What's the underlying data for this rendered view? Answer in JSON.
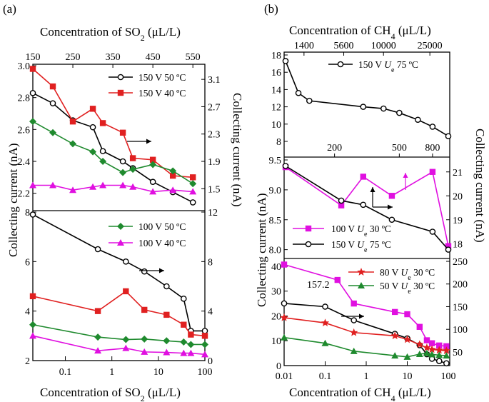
{
  "chart_data": [
    {
      "type": "line",
      "panel_label": "(a)",
      "title": "",
      "xlabel": "Concentration of SO2 (μL/L)",
      "xlabel_display": [
        "Concentration of SO",
        "2",
        " (μL/L)"
      ],
      "top_xlabel_display": [
        "Concentration of SO",
        "2",
        " (μL/L)"
      ],
      "top_ticks": [
        "150",
        "250",
        "350",
        "450",
        "550"
      ],
      "left_ylabel": "Collecting current (nA)",
      "right_ylabel": "Collecting current (nA)",
      "subplots": [
        {
          "name": "a-top",
          "x_scale": "linear",
          "xlim": [
            150,
            580
          ],
          "ylim_left": [
            2.1,
            3.0
          ],
          "ylim_right": [
            1.2,
            3.3
          ],
          "left_ticks": [
            "2.2",
            "2.4",
            "2.6",
            "2.8",
            "3.0"
          ],
          "right_ticks": [
            "1.5",
            "1.9",
            "2.3",
            "2.7",
            "3.1"
          ],
          "series": [
            {
              "name": "150 V 50 °C",
              "color": "#000000",
              "marker": "circle-open",
              "axis": "right",
              "x": [
                150,
                200,
                250,
                300,
                325,
                375,
                400,
                450,
                500,
                550
              ],
              "y": [
                2.9,
                2.75,
                2.5,
                2.4,
                2.05,
                1.9,
                1.8,
                1.6,
                1.45,
                1.3
              ]
            },
            {
              "name": "150 V 40 °C",
              "color": "#e02020",
              "marker": "square",
              "axis": "left",
              "x": [
                150,
                200,
                250,
                300,
                325,
                375,
                400,
                450,
                500,
                550
              ],
              "y": [
                2.98,
                2.87,
                2.65,
                2.73,
                2.64,
                2.58,
                2.42,
                2.41,
                2.31,
                2.3
              ]
            },
            {
              "name": "100 V 50 °C",
              "color": "#1f8a2e",
              "marker": "diamond",
              "axis": "left",
              "x": [
                150,
                200,
                250,
                300,
                325,
                375,
                400,
                450,
                500,
                550
              ],
              "y": [
                2.65,
                2.58,
                2.51,
                2.46,
                2.4,
                2.33,
                2.35,
                2.38,
                2.34,
                2.26
              ]
            },
            {
              "name": "100 V 40 °C",
              "color": "#e010e0",
              "marker": "triangle",
              "axis": "left",
              "x": [
                150,
                200,
                250,
                300,
                325,
                375,
                400,
                450,
                500,
                550
              ],
              "y": [
                2.25,
                2.25,
                2.22,
                2.24,
                2.25,
                2.25,
                2.24,
                2.21,
                2.22,
                2.21
              ]
            }
          ]
        },
        {
          "name": "a-bottom",
          "x_scale": "log",
          "xlim": [
            0.02,
            100
          ],
          "x_ticks": [
            "0.1",
            "1",
            "10",
            "100"
          ],
          "ylim_left": [
            2,
            8
          ],
          "ylim_right": [
            0,
            12
          ],
          "left_ticks": [
            "2",
            "4",
            "6",
            "8"
          ],
          "right_ticks": [
            "0",
            "4",
            "8",
            "12"
          ],
          "series": [
            {
              "name": "150 V 50 °C",
              "color": "#000000",
              "marker": "circle-open",
              "axis": "right",
              "x": [
                0.02,
                0.5,
                2,
                5,
                15,
                35,
                50,
                100
              ],
              "y": [
                11.8,
                9,
                8,
                7.2,
                6,
                5,
                2.4,
                2.4
              ]
            },
            {
              "name": "150 V 40 °C",
              "color": "#e02020",
              "marker": "square",
              "axis": "left",
              "x": [
                0.02,
                0.5,
                2,
                5,
                15,
                35,
                50,
                100
              ],
              "y": [
                4.6,
                4.0,
                4.8,
                4.05,
                3.85,
                3.45,
                3.05,
                3.0
              ]
            },
            {
              "name": "100 V 50 °C",
              "color": "#1f8a2e",
              "marker": "diamond",
              "axis": "left",
              "x": [
                0.02,
                0.5,
                2,
                5,
                15,
                35,
                50,
                100
              ],
              "y": [
                3.45,
                2.95,
                2.85,
                2.87,
                2.8,
                2.75,
                2.65,
                2.65
              ]
            },
            {
              "name": "100 V 40 °C",
              "color": "#e010e0",
              "marker": "triangle",
              "axis": "left",
              "x": [
                0.02,
                0.5,
                2,
                5,
                15,
                35,
                50,
                100
              ],
              "y": [
                3.0,
                2.4,
                2.5,
                2.35,
                2.33,
                2.3,
                2.3,
                2.25
              ]
            }
          ]
        }
      ],
      "legend_top": [
        "150 V 50 ºC",
        "150 V 40 ºC"
      ],
      "legend_bottom": [
        "100 V 50 ºC",
        "100 V 40 ºC"
      ]
    },
    {
      "type": "line",
      "panel_label": "(b)",
      "title": "",
      "xlabel": "Concentration of CH4 (μL/L)",
      "xlabel_display": [
        "Concentration of CH",
        "4",
        " (μL/L)"
      ],
      "top_xlabel_display": [
        "Concentration of CH",
        "4",
        " (μL/L)"
      ],
      "top_ticks": [
        "1400",
        "5600",
        "10000",
        "25000"
      ],
      "left_ylabel": "Collecting current (nA)",
      "right_ylabel": "Collecting current (nA)",
      "subplots": [
        {
          "name": "b-top",
          "x_scale": "log",
          "xlim": [
            100,
            1000
          ],
          "ylim_left": [
            8,
            18
          ],
          "left_ticks": [
            "8",
            "10",
            "12",
            "14",
            "16",
            "18"
          ],
          "inner_ticks": [
            "200",
            "500",
            "800"
          ],
          "series": [
            {
              "name": "150 V Ue 75 °C",
              "color": "#000000",
              "marker": "circle-open",
              "axis": "left",
              "x": [
                100,
                120,
                140,
                300,
                400,
                500,
                650,
                800,
                1000
              ],
              "y": [
                17.3,
                13.6,
                12.7,
                12.0,
                11.8,
                11.3,
                10.5,
                9.7,
                8.6
              ]
            }
          ]
        },
        {
          "name": "b-middle",
          "x_scale": "log",
          "xlim": [
            100,
            1000
          ],
          "ylim_left": [
            7.9,
            9.5
          ],
          "ylim_right": [
            17.5,
            21.5
          ],
          "left_ticks": [
            "8.0",
            "8.5",
            "9.0",
            "9.5"
          ],
          "right_ticks": [
            "18",
            "19",
            "20",
            "21"
          ],
          "series": [
            {
              "name": "100 V Ue 30 °C",
              "color": "#e010e0",
              "marker": "square",
              "axis": "right",
              "x": [
                100,
                220,
                300,
                450,
                800,
                1000
              ],
              "y": [
                21.2,
                19.6,
                20.8,
                20.0,
                21.0,
                17.9
              ]
            },
            {
              "name": "150 V Ue 75 °C",
              "color": "#000000",
              "marker": "circle-open",
              "axis": "left",
              "x": [
                100,
                220,
                300,
                450,
                800,
                1000
              ],
              "y": [
                9.4,
                8.82,
                8.75,
                8.5,
                8.3,
                8.0
              ]
            }
          ]
        },
        {
          "name": "b-bottom",
          "x_scale": "log",
          "xlim": [
            0.01,
            100
          ],
          "x_ticks": [
            "0.01",
            "0.1",
            "1",
            "10",
            "100"
          ],
          "ylim_left": [
            0,
            42
          ],
          "ylim_right": [
            20,
            250
          ],
          "left_ticks": [
            "0",
            "10",
            "20",
            "30",
            "40"
          ],
          "right_ticks": [
            "50",
            "100",
            "150",
            "200",
            "250"
          ],
          "annotation": "157.2",
          "series": [
            {
              "name": "100 V Ue 30 °C",
              "color": "#e010e0",
              "marker": "square",
              "axis": "left",
              "x": [
                0.01,
                0.2,
                0.5,
                5,
                10,
                20,
                30,
                40,
                60,
                90
              ],
              "y": [
                40.7,
                34.5,
                25,
                21.6,
                20.7,
                15.6,
                10.2,
                9,
                8.1,
                7.8
              ]
            },
            {
              "name": "150 V Ue 75 °C",
              "color": "#000000",
              "marker": "circle-open",
              "axis": "right",
              "x": [
                0.01,
                0.1,
                0.5,
                5,
                10,
                20,
                30,
                40,
                60,
                90
              ],
              "y": [
                157.2,
                150,
                120,
                90,
                80,
                65,
                45,
                35,
                30,
                25
              ]
            },
            {
              "name": "80 V Ue 30 °C",
              "color": "#e02020",
              "marker": "star",
              "axis": "left",
              "x": [
                0.01,
                0.1,
                0.5,
                5,
                10,
                20,
                30,
                40,
                60,
                90
              ],
              "y": [
                19.3,
                17.2,
                13.3,
                12,
                10.5,
                8.5,
                7.2,
                6.5,
                6.2,
                6.0
              ]
            },
            {
              "name": "50 V Ue 30 °C",
              "color": "#1f8a2e",
              "marker": "triangle",
              "axis": "left",
              "x": [
                0.01,
                0.1,
                0.5,
                5,
                10,
                20,
                30,
                40,
                60,
                90
              ],
              "y": [
                11.3,
                9,
                5.8,
                4,
                3.5,
                4.6,
                5,
                4.5,
                4.2,
                4.0
              ]
            }
          ]
        }
      ],
      "legend_top": [
        "150 V ",
        "U",
        "e",
        " 75 ºC"
      ],
      "legend_middle": [
        [
          "100 V ",
          "U",
          "e",
          " 30 ºC"
        ],
        [
          "150 V ",
          "U",
          "e",
          " 75 ºC"
        ]
      ],
      "legend_bottom": [
        [
          "80 V ",
          "U",
          "e",
          " 30 ºC"
        ],
        [
          "50 V ",
          "U",
          "e",
          " 30 ºC"
        ]
      ]
    }
  ]
}
